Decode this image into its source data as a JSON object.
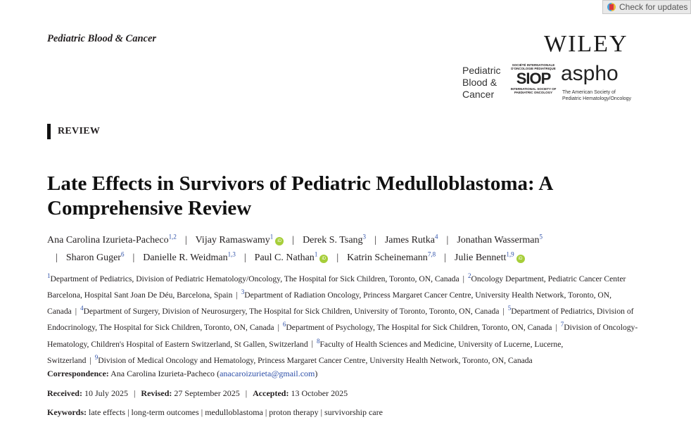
{
  "check_updates": "Check for updates",
  "journal_name": "Pediatric Blood & Cancer",
  "logos": {
    "publisher": "WILEY",
    "journal_logo": [
      "Pediatric",
      "Blood &",
      "Cancer"
    ],
    "siop_top": "SOCIÉTÉ INTERNATIONALE D'ONCOLOGIE PÉDIATRIQUE",
    "siop": "SIOP",
    "siop_bottom": "INTERNATIONAL SOCIETY OF PAEDIATRIC ONCOLOGY",
    "aspho": "aspho",
    "aspho_sub": [
      "The American Society of",
      "Pediatric Hematology/Oncology"
    ]
  },
  "article_type": "REVIEW",
  "title": "Late Effects in Survivors of Pediatric Medulloblastoma: A Comprehensive Review",
  "authors": [
    {
      "name": "Ana Carolina Izurieta-Pacheco",
      "aff": "1,2",
      "orcid": false
    },
    {
      "name": "Vijay Ramaswamy",
      "aff": "1",
      "orcid": true
    },
    {
      "name": "Derek S. Tsang",
      "aff": "3",
      "orcid": false
    },
    {
      "name": "James Rutka",
      "aff": "4",
      "orcid": false
    },
    {
      "name": "Jonathan Wasserman",
      "aff": "5",
      "orcid": false
    },
    {
      "name": "Sharon Guger",
      "aff": "6",
      "orcid": false
    },
    {
      "name": "Danielle R. Weidman",
      "aff": "1,3",
      "orcid": false
    },
    {
      "name": "Paul C. Nathan",
      "aff": "1",
      "orcid": true
    },
    {
      "name": "Katrin Scheinemann",
      "aff": "7,8",
      "orcid": false
    },
    {
      "name": "Julie Bennett",
      "aff": "1,9",
      "orcid": true
    }
  ],
  "affiliations": [
    {
      "n": "1",
      "text": "Department of Pediatrics, Division of Pediatric Hematology/Oncology, The Hospital for Sick Children, Toronto, ON, Canada"
    },
    {
      "n": "2",
      "text": "Oncology Department, Pediatric Cancer Center Barcelona, Hospital Sant Joan De Déu, Barcelona, Spain"
    },
    {
      "n": "3",
      "text": "Department of Radiation Oncology, Princess Margaret Cancer Centre, University Health Network, Toronto, ON, Canada"
    },
    {
      "n": "4",
      "text": "Department of Surgery, Division of Neurosurgery, The Hospital for Sick Children, University of Toronto, Toronto, ON, Canada"
    },
    {
      "n": "5",
      "text": "Department of Pediatrics, Division of Endocrinology, The Hospital for Sick Children, Toronto, ON, Canada"
    },
    {
      "n": "6",
      "text": "Department of Psychology, The Hospital for Sick Children, Toronto, ON, Canada"
    },
    {
      "n": "7",
      "text": "Division of Oncology-Hematology, Children's Hospital of Eastern Switzerland, St Gallen, Switzerland"
    },
    {
      "n": "8",
      "text": "Faculty of Health Sciences and Medicine, University of Lucerne, Lucerne, Switzerland"
    },
    {
      "n": "9",
      "text": "Division of Medical Oncology and Hematology, Princess Margaret Cancer Centre, University Health Network, Toronto, ON, Canada"
    }
  ],
  "correspondence": {
    "label": "Correspondence:",
    "name": "Ana Carolina Izurieta-Pacheco",
    "email": "anacaroizurieta@gmail.com"
  },
  "dates": {
    "received_label": "Received:",
    "received": "10 July 2025",
    "revised_label": "Revised:",
    "revised": "27 September 2025",
    "accepted_label": "Accepted:",
    "accepted": "13 October 2025"
  },
  "keywords": {
    "label": "Keywords:",
    "items": [
      "late effects",
      "long-term outcomes",
      "medulloblastoma",
      "proton therapy",
      "survivorship care"
    ]
  },
  "colors": {
    "link": "#2d4fa8",
    "orcid": "#a6ce39"
  }
}
